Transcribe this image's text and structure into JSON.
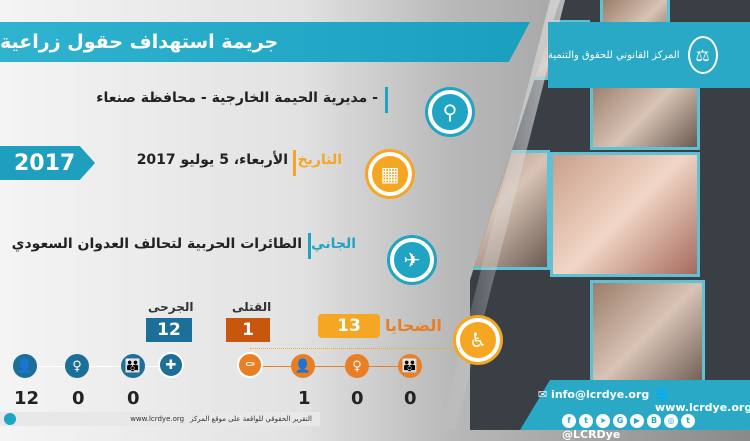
{
  "title": "جريمة استهداف حقول زراعية",
  "org": {
    "name": "المركز القانوني للحقوق والتنمية",
    "logo_text": "LCRD"
  },
  "year": "2017",
  "location": {
    "text": "- مديرية الحيمة الخارجية - محافظة صنعاء",
    "icon": "location-pin-icon"
  },
  "date": {
    "label": "التاريخ",
    "value": "الأربعاء، 5 يوليو 2017",
    "icon": "calendar-icon"
  },
  "perpetrator": {
    "label": "الجاني",
    "value": "الطائرات الحربية لتحالف العدوان السعودي",
    "icon": "warplane-icon"
  },
  "victims": {
    "label": "الضحايا",
    "total": "13",
    "killed_label": "القتلى",
    "killed": "1",
    "injured_label": "الجرحى",
    "injured": "12",
    "killed_breakdown": {
      "men": "1",
      "women": "0",
      "children": "0"
    },
    "injured_breakdown": {
      "men": "12",
      "women": "0",
      "children": "0"
    }
  },
  "contacts": {
    "email": "info@lcrdye.org",
    "website": "www.lcrdye.org",
    "handle": "@LCRDye"
  },
  "footer": {
    "text": "التقرير الحقوقي للواقعة على موقع المركز",
    "url": "www.lcrdye.org"
  },
  "colors": {
    "teal": "#1fa4c3",
    "orange": "#f5a623",
    "killed": "#c8560f",
    "injured": "#1b6f99"
  }
}
